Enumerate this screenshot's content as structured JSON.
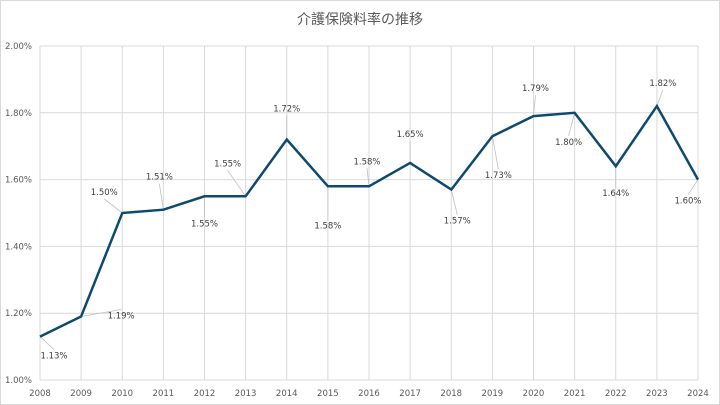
{
  "chart_data": {
    "type": "line",
    "title": "介護保険料率の推移",
    "categories": [
      "2008",
      "2009",
      "2010",
      "2011",
      "2012",
      "2013",
      "2014",
      "2015",
      "2016",
      "2017",
      "2018",
      "2019",
      "2020",
      "2021",
      "2022",
      "2023",
      "2024"
    ],
    "series": [
      {
        "values": [
          1.13,
          1.19,
          1.5,
          1.51,
          1.55,
          1.55,
          1.72,
          1.58,
          1.58,
          1.65,
          1.57,
          1.73,
          1.79,
          1.8,
          1.64,
          1.82,
          1.6
        ],
        "labels": [
          "1.13%",
          "1.19%",
          "1.50%",
          "1.51%",
          "1.55%",
          "1.55%",
          "1.72%",
          "1.58%",
          "1.58%",
          "1.65%",
          "1.57%",
          "1.73%",
          "1.79%",
          "1.80%",
          "1.64%",
          "1.82%",
          "1.60%"
        ],
        "color": "#0e4a6e"
      }
    ],
    "ylim": [
      1.0,
      2.0
    ],
    "yticks": [
      "1.00%",
      "1.20%",
      "1.40%",
      "1.60%",
      "1.80%",
      "2.00%"
    ],
    "grid": "vertical and horizontal",
    "xlabel": "",
    "ylabel": ""
  }
}
